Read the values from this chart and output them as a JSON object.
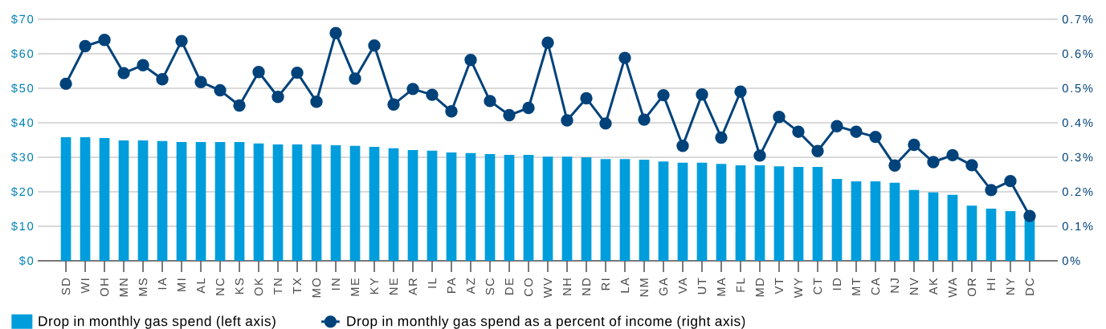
{
  "chart_data": {
    "type": "bar",
    "categories": [
      "SD",
      "WI",
      "OH",
      "MN",
      "MS",
      "IA",
      "MI",
      "AL",
      "NC",
      "KS",
      "OK",
      "TN",
      "TX",
      "MO",
      "IN",
      "ME",
      "KY",
      "NE",
      "AR",
      "IL",
      "PA",
      "AZ",
      "SC",
      "DE",
      "CO",
      "WV",
      "NH",
      "ND",
      "RI",
      "LA",
      "NM",
      "GA",
      "VA",
      "UT",
      "MA",
      "FL",
      "MD",
      "VT",
      "WY",
      "CT",
      "ID",
      "MT",
      "CA",
      "NJ",
      "NV",
      "AK",
      "WA",
      "OR",
      "HI",
      "NY",
      "DC"
    ],
    "series": [
      {
        "name": "Drop in monthly gas spend (left axis)",
        "color": "#009ddc",
        "values": [
          35.8,
          35.8,
          35.6,
          34.9,
          34.9,
          34.7,
          34.4,
          34.4,
          34.4,
          34.4,
          34.0,
          33.7,
          33.7,
          33.7,
          33.5,
          33.3,
          33.0,
          32.6,
          32.1,
          31.9,
          31.4,
          31.2,
          30.9,
          30.7,
          30.7,
          30.2,
          30.2,
          30.0,
          29.5,
          29.5,
          29.3,
          28.8,
          28.4,
          28.4,
          28.1,
          27.7,
          27.7,
          27.4,
          27.2,
          27.2,
          23.7,
          23.0,
          23.0,
          22.6,
          20.5,
          19.8,
          19.1,
          16.0,
          15.1,
          14.4,
          12.8
        ]
      },
      {
        "name": "Drop in monthly gas spend as a percent of income (right axis)",
        "type": "line",
        "axis": "y2",
        "color": "#00427a",
        "values": [
          0.513,
          0.622,
          0.64,
          0.544,
          0.567,
          0.526,
          0.637,
          0.518,
          0.494,
          0.45,
          0.547,
          0.475,
          0.545,
          0.461,
          0.66,
          0.528,
          0.624,
          0.453,
          0.498,
          0.481,
          0.433,
          0.582,
          0.463,
          0.422,
          0.443,
          0.632,
          0.407,
          0.471,
          0.398,
          0.588,
          0.409,
          0.48,
          0.333,
          0.482,
          0.357,
          0.49,
          0.305,
          0.417,
          0.374,
          0.318,
          0.39,
          0.374,
          0.359,
          0.276,
          0.336,
          0.286,
          0.306,
          0.277,
          0.205,
          0.231,
          0.13
        ]
      }
    ],
    "ylim": [
      0,
      70
    ],
    "yticks": [
      {
        "value": 0,
        "label": "$0"
      },
      {
        "value": 10,
        "label": "$10"
      },
      {
        "value": 20,
        "label": "$20"
      },
      {
        "value": 30,
        "label": "$30"
      },
      {
        "value": 40,
        "label": "$40"
      },
      {
        "value": 50,
        "label": "$50"
      },
      {
        "value": 60,
        "label": "$60"
      },
      {
        "value": 70,
        "label": "$70"
      }
    ],
    "y2lim": [
      0,
      0.7
    ],
    "y2ticks": [
      {
        "value": 0,
        "label": "0%"
      },
      {
        "value": 0.1,
        "label": "0.1%"
      },
      {
        "value": 0.2,
        "label": "0.2%"
      },
      {
        "value": 0.3,
        "label": "0.3%"
      },
      {
        "value": 0.4,
        "label": "0.4%"
      },
      {
        "value": 0.5,
        "label": "0.5%"
      },
      {
        "value": 0.6,
        "label": "0.6%"
      },
      {
        "value": 0.7,
        "label": "0.7%"
      }
    ],
    "grid": "y",
    "legend": "bottom left",
    "marker": "circle",
    "line_style": "solid"
  }
}
